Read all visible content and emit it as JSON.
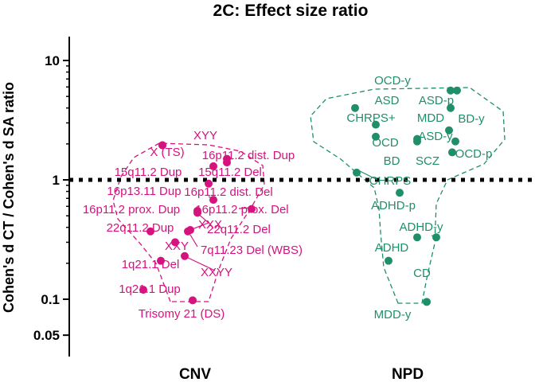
{
  "chart_data": {
    "type": "scatter",
    "title": "2C: Effect size ratio",
    "ylabel": "Cohen's d CT / Cohen's d SA ratio",
    "xlabel": "",
    "y_scale": "log",
    "ylim": [
      0.035,
      20
    ],
    "y_ticks": [
      "10",
      "1",
      "0.1",
      "0.05"
    ],
    "reference_line": {
      "y": 1,
      "style": "dotted"
    },
    "categories": [
      "CNV",
      "NPD"
    ],
    "colors": {
      "CNV": "#d6127f",
      "NPD": "#1f8f69"
    },
    "series": [
      {
        "name": "CNV",
        "points": [
          {
            "label": "XYY",
            "y": 1.95
          },
          {
            "label": "X (TS)",
            "y": 1.95
          },
          {
            "label": "16p11.2 dist. Dup",
            "y": 1.5
          },
          {
            "label": "15q11.2 Dup",
            "y": 1.3
          },
          {
            "label": "15q11.2 Del",
            "y": 1.4
          },
          {
            "label": "16p13.11 Dup",
            "y": 0.93
          },
          {
            "label": "16p11.2 dist. Del",
            "y": 0.68
          },
          {
            "label": "16p11.2 prox. Dup",
            "y": 0.53
          },
          {
            "label": "16p11.2 prox. Del",
            "y": 0.57
          },
          {
            "label": "XXX",
            "y": 0.55
          },
          {
            "label": "22q11.2 Dup",
            "y": 0.37
          },
          {
            "label": "22q11.2 Del",
            "y": 0.37
          },
          {
            "label": "XXY",
            "y": 0.3
          },
          {
            "label": "7q11.23 Del (WBS)",
            "y": 0.38
          },
          {
            "label": "XXYY",
            "y": 0.23
          },
          {
            "label": "1q21.1 Del",
            "y": 0.21
          },
          {
            "label": "1q21.1 Dup",
            "y": 0.12
          },
          {
            "label": "Trisomy 21 (DS)",
            "y": 0.098
          }
        ]
      },
      {
        "name": "NPD",
        "points": [
          {
            "label": "OCD-y",
            "y": 5.6
          },
          {
            "label": "ASD",
            "y": 4.0
          },
          {
            "label": "ASD-p",
            "y": 5.6
          },
          {
            "label": "CHRPS+",
            "y": 2.9
          },
          {
            "label": "MDD",
            "y": 4.0
          },
          {
            "label": "BD-y",
            "y": 2.6
          },
          {
            "label": "OCD",
            "y": 2.3
          },
          {
            "label": "ASD-y",
            "y": 2.1
          },
          {
            "label": "OCD-p",
            "y": 1.7
          },
          {
            "label": "BD",
            "y": 2.1
          },
          {
            "label": "SCZ",
            "y": 2.2
          },
          {
            "label": "CHRPS",
            "y": 1.15
          },
          {
            "label": "ADHD-p",
            "y": 0.78
          },
          {
            "label": "ADHD-y",
            "y": 0.33
          },
          {
            "label": "ADHD",
            "y": 0.21
          },
          {
            "label": "CD",
            "y": 0.33
          },
          {
            "label": "MDD-y",
            "y": 0.095
          }
        ]
      }
    ]
  }
}
